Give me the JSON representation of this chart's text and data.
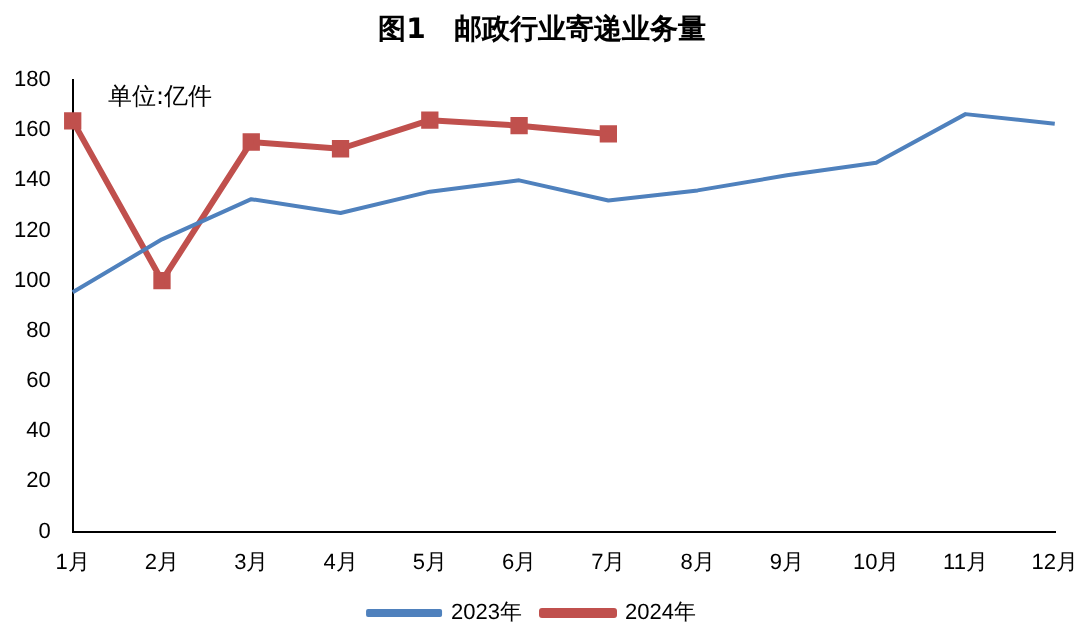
{
  "chart_data": {
    "type": "line",
    "title": "图1　邮政行业寄递业务量",
    "annotations": [
      "单位:亿件"
    ],
    "categories": [
      "1月",
      "2月",
      "3月",
      "4月",
      "5月",
      "6月",
      "7月",
      "8月",
      "9月",
      "10月",
      "11月",
      "12月"
    ],
    "series": [
      {
        "name": "2023年",
        "color": "#4f81bd",
        "marker": "none",
        "values": [
          95.4,
          116.5,
          132.5,
          127,
          135.5,
          140,
          132,
          136,
          142,
          147,
          166.4,
          162.6
        ]
      },
      {
        "name": "2024年",
        "color": "#c0504d",
        "marker": "square",
        "values": [
          163.7,
          100,
          155.3,
          152.6,
          164,
          161.8,
          158.5,
          null,
          null,
          null,
          null,
          null
        ]
      }
    ],
    "ylim": [
      0,
      180
    ],
    "yticks": [
      0,
      20,
      40,
      60,
      80,
      100,
      120,
      140,
      160,
      180
    ],
    "grid": false,
    "legend": "bottom"
  }
}
